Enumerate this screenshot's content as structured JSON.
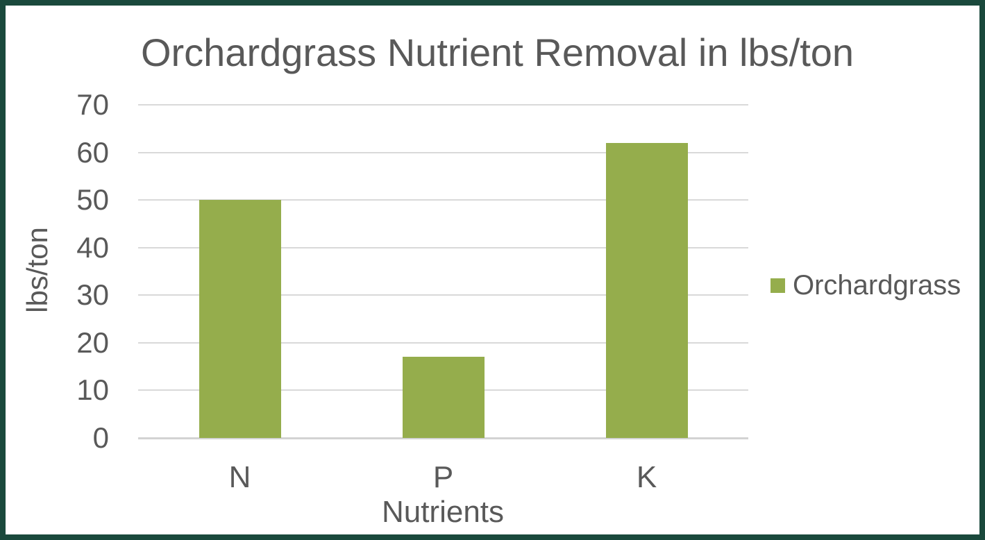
{
  "chart_data": {
    "type": "bar",
    "title": "Orchardgrass Nutrient Removal in lbs/ton",
    "categories": [
      "N",
      "P",
      "K"
    ],
    "values": [
      50,
      17,
      62
    ],
    "series": [
      {
        "name": "Orchardgrass",
        "values": [
          50,
          17,
          62
        ]
      }
    ],
    "xlabel": "Nutrients",
    "ylabel": "lbs/ton",
    "ylim": [
      0,
      70
    ],
    "yticks": [
      0,
      10,
      20,
      30,
      40,
      50,
      60,
      70
    ],
    "grid": true,
    "legend_position": "right",
    "legend_label": "Orchardgrass",
    "colors": {
      "bar": "#95AD4C",
      "border": "#1A493C",
      "text": "#595959",
      "gridline": "#D9D9D9"
    }
  }
}
